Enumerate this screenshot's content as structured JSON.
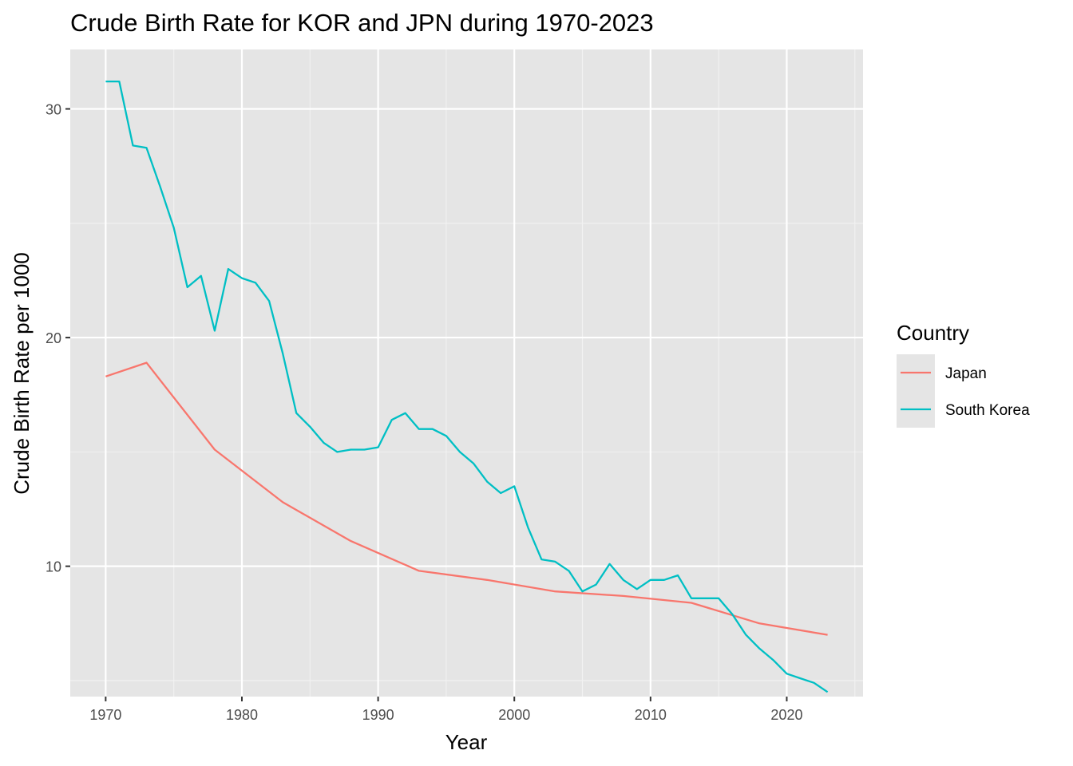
{
  "chart_data": {
    "type": "line",
    "title": "Crude Birth Rate for KOR and JPN during 1970-2023",
    "xlabel": "Year",
    "ylabel": "Crude Birth Rate per 1000",
    "xlim": [
      1967.4,
      2025.6
    ],
    "ylim": [
      4.3,
      32.6
    ],
    "x_ticks": [
      1970,
      1980,
      1990,
      2000,
      2010,
      2020
    ],
    "y_ticks": [
      10,
      20,
      30
    ],
    "grid": true,
    "legend": {
      "title": "Country",
      "position": "right",
      "entries": [
        {
          "name": "Japan",
          "color": "#F8766D"
        },
        {
          "name": "South Korea",
          "color": "#00BFC4"
        }
      ]
    },
    "series": [
      {
        "name": "Japan",
        "color": "#F8766D",
        "points": [
          [
            1970,
            18.3
          ],
          [
            1973,
            18.9
          ],
          [
            1978,
            15.1
          ],
          [
            1983,
            12.8
          ],
          [
            1988,
            11.1
          ],
          [
            1993,
            9.8
          ],
          [
            1998,
            9.4
          ],
          [
            2003,
            8.9
          ],
          [
            2008,
            8.7
          ],
          [
            2013,
            8.4
          ],
          [
            2018,
            7.5
          ],
          [
            2023,
            7.0
          ]
        ]
      },
      {
        "name": "South Korea",
        "color": "#00BFC4",
        "points": [
          [
            1970,
            31.2
          ],
          [
            1971,
            31.2
          ],
          [
            1972,
            28.4
          ],
          [
            1973,
            28.3
          ],
          [
            1974,
            26.6
          ],
          [
            1975,
            24.8
          ],
          [
            1976,
            22.2
          ],
          [
            1977,
            22.7
          ],
          [
            1978,
            20.3
          ],
          [
            1979,
            23.0
          ],
          [
            1980,
            22.6
          ],
          [
            1981,
            22.4
          ],
          [
            1982,
            21.6
          ],
          [
            1983,
            19.3
          ],
          [
            1984,
            16.7
          ],
          [
            1985,
            16.1
          ],
          [
            1986,
            15.4
          ],
          [
            1987,
            15.0
          ],
          [
            1988,
            15.1
          ],
          [
            1989,
            15.1
          ],
          [
            1990,
            15.2
          ],
          [
            1991,
            16.4
          ],
          [
            1992,
            16.7
          ],
          [
            1993,
            16.0
          ],
          [
            1994,
            16.0
          ],
          [
            1995,
            15.7
          ],
          [
            1996,
            15.0
          ],
          [
            1997,
            14.5
          ],
          [
            1998,
            13.7
          ],
          [
            1999,
            13.2
          ],
          [
            2000,
            13.5
          ],
          [
            2001,
            11.7
          ],
          [
            2002,
            10.3
          ],
          [
            2003,
            10.2
          ],
          [
            2004,
            9.8
          ],
          [
            2005,
            8.9
          ],
          [
            2006,
            9.2
          ],
          [
            2007,
            10.1
          ],
          [
            2008,
            9.4
          ],
          [
            2009,
            9.0
          ],
          [
            2010,
            9.4
          ],
          [
            2011,
            9.4
          ],
          [
            2012,
            9.6
          ],
          [
            2013,
            8.6
          ],
          [
            2014,
            8.6
          ],
          [
            2015,
            8.6
          ],
          [
            2016,
            7.9
          ],
          [
            2017,
            7.0
          ],
          [
            2018,
            6.4
          ],
          [
            2019,
            5.9
          ],
          [
            2020,
            5.3
          ],
          [
            2021,
            5.1
          ],
          [
            2022,
            4.9
          ],
          [
            2023,
            4.5
          ]
        ]
      }
    ]
  }
}
